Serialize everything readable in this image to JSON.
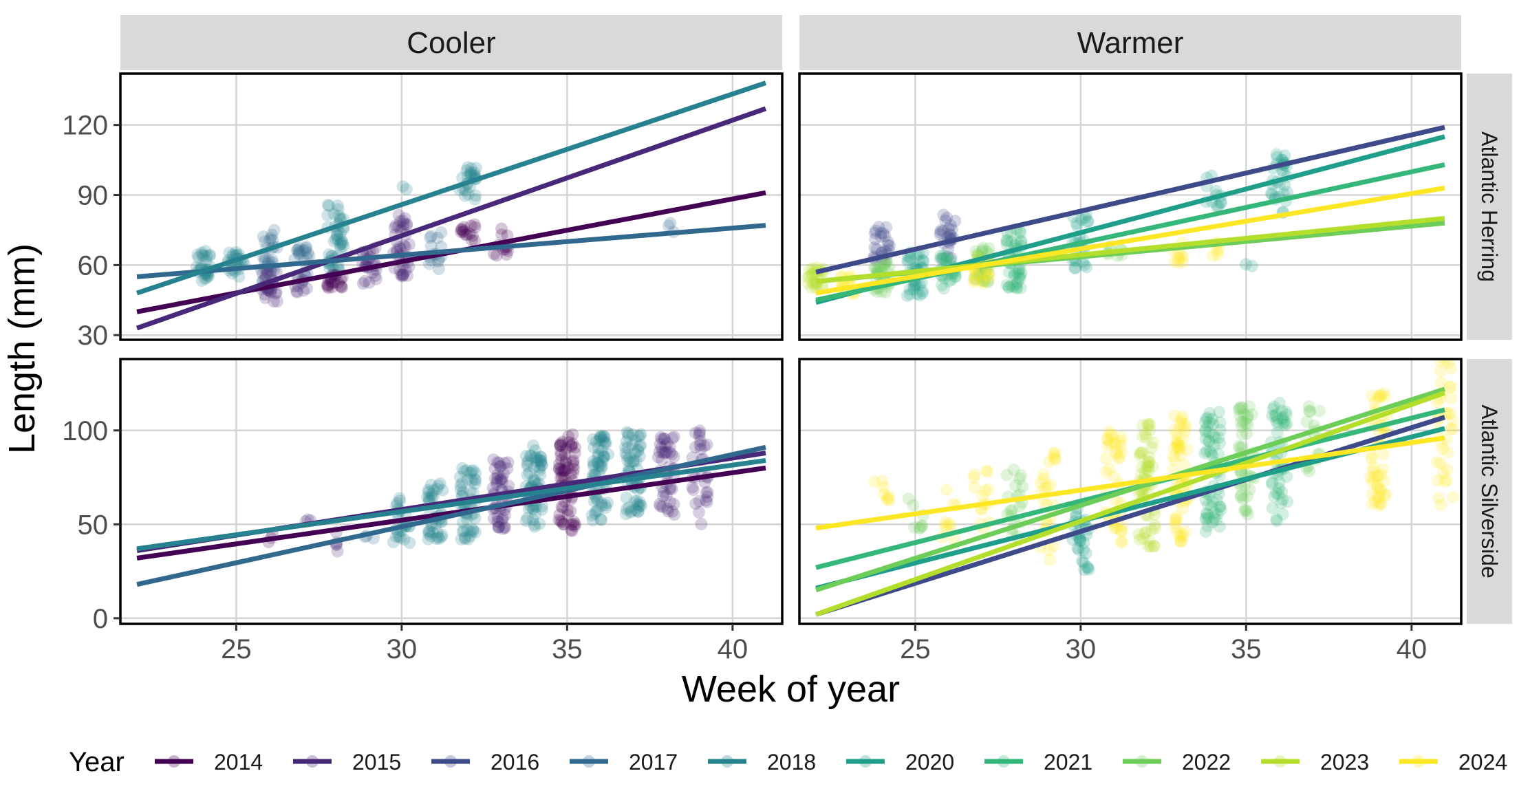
{
  "chart_data": {
    "type": "scatter",
    "xlabel": "Week of year",
    "ylabel": "Length (mm)",
    "xlim": [
      21.5,
      41.5
    ],
    "x_ticks": [
      25,
      30,
      35,
      40
    ],
    "grid": true,
    "legend_position": "bottom",
    "legend": {
      "title": "Year",
      "entries": [
        {
          "name": "2014",
          "color": "#440154"
        },
        {
          "name": "2015",
          "color": "#482878"
        },
        {
          "name": "2016",
          "color": "#3E4A89"
        },
        {
          "name": "2017",
          "color": "#31688E"
        },
        {
          "name": "2018",
          "color": "#26828E"
        },
        {
          "name": "2020",
          "color": "#1F9E89"
        },
        {
          "name": "2021",
          "color": "#35B779"
        },
        {
          "name": "2022",
          "color": "#6DCD59"
        },
        {
          "name": "2023",
          "color": "#B4DE2C"
        },
        {
          "name": "2024",
          "color": "#FDE725"
        }
      ]
    },
    "columns": [
      "Cooler",
      "Warmer"
    ],
    "rows": [
      {
        "name": "Atlantic Herring",
        "ylim": [
          28,
          142
        ],
        "y_ticks": [
          30,
          60,
          90,
          120
        ]
      },
      {
        "name": "Atlantic Silverside",
        "ylim": [
          -3,
          138
        ],
        "y_ticks": [
          0,
          50,
          100
        ]
      }
    ],
    "panels": [
      {
        "column": "Cooler",
        "row": "Atlantic Herring",
        "fit_lines": [
          {
            "year": "2014",
            "x": [
              22,
              41
            ],
            "y": [
              40,
              91
            ]
          },
          {
            "year": "2015",
            "x": [
              22,
              41
            ],
            "y": [
              33,
              127
            ]
          },
          {
            "year": "2017",
            "x": [
              22,
              41
            ],
            "y": [
              55,
              77
            ]
          },
          {
            "year": "2018",
            "x": [
              22,
              41
            ],
            "y": [
              48,
              138
            ]
          }
        ],
        "point_groups": [
          {
            "year": "2018",
            "x": 24,
            "y_min": 53,
            "y_max": 66,
            "n": 30
          },
          {
            "year": "2018",
            "x": 25,
            "y_min": 55,
            "y_max": 66,
            "n": 25
          },
          {
            "year": "2017",
            "x": 26,
            "y_min": 50,
            "y_max": 75,
            "n": 30
          },
          {
            "year": "2015",
            "x": 26,
            "y_min": 44,
            "y_max": 58,
            "n": 25
          },
          {
            "year": "2017",
            "x": 27,
            "y_min": 52,
            "y_max": 68,
            "n": 20
          },
          {
            "year": "2015",
            "x": 27,
            "y_min": 48,
            "y_max": 57,
            "n": 10
          },
          {
            "year": "2018",
            "x": 28,
            "y_min": 56,
            "y_max": 86,
            "n": 45
          },
          {
            "year": "2014",
            "x": 28,
            "y_min": 50,
            "y_max": 56,
            "n": 20
          },
          {
            "year": "2015",
            "x": 29,
            "y_min": 52,
            "y_max": 68,
            "n": 25
          },
          {
            "year": "2015",
            "x": 30,
            "y_min": 55,
            "y_max": 82,
            "n": 40
          },
          {
            "year": "2018",
            "x": 30,
            "y_min": 92,
            "y_max": 96,
            "n": 2
          },
          {
            "year": "2017",
            "x": 31,
            "y_min": 58,
            "y_max": 74,
            "n": 15
          },
          {
            "year": "2018",
            "x": 32,
            "y_min": 88,
            "y_max": 102,
            "n": 25
          },
          {
            "year": "2014",
            "x": 32,
            "y_min": 70,
            "y_max": 78,
            "n": 15
          },
          {
            "year": "2014",
            "x": 33,
            "y_min": 63,
            "y_max": 76,
            "n": 12
          },
          {
            "year": "2017",
            "x": 38,
            "y_min": 72,
            "y_max": 82,
            "n": 3
          }
        ]
      },
      {
        "column": "Warmer",
        "row": "Atlantic Herring",
        "fit_lines": [
          {
            "year": "2016",
            "x": [
              22,
              41
            ],
            "y": [
              57,
              119
            ]
          },
          {
            "year": "2020",
            "x": [
              22,
              41
            ],
            "y": [
              44,
              115
            ]
          },
          {
            "year": "2021",
            "x": [
              22,
              41
            ],
            "y": [
              45,
              103
            ]
          },
          {
            "year": "2022",
            "x": [
              22,
              41
            ],
            "y": [
              53,
              78
            ]
          },
          {
            "year": "2023",
            "x": [
              22,
              41
            ],
            "y": [
              53,
              80
            ]
          },
          {
            "year": "2024",
            "x": [
              22,
              41
            ],
            "y": [
              48,
              93
            ]
          }
        ],
        "point_groups": [
          {
            "year": "2023",
            "x": 22,
            "y_min": 50,
            "y_max": 60,
            "n": 25
          },
          {
            "year": "2024",
            "x": 23,
            "y_min": 47,
            "y_max": 56,
            "n": 15
          },
          {
            "year": "2016",
            "x": 24,
            "y_min": 62,
            "y_max": 78,
            "n": 25
          },
          {
            "year": "2022",
            "x": 24,
            "y_min": 48,
            "y_max": 62,
            "n": 30
          },
          {
            "year": "2020",
            "x": 25,
            "y_min": 46,
            "y_max": 66,
            "n": 35
          },
          {
            "year": "2016",
            "x": 26,
            "y_min": 62,
            "y_max": 82,
            "n": 25
          },
          {
            "year": "2021",
            "x": 26,
            "y_min": 50,
            "y_max": 65,
            "n": 30
          },
          {
            "year": "2022",
            "x": 27,
            "y_min": 52,
            "y_max": 68,
            "n": 35
          },
          {
            "year": "2024",
            "x": 27,
            "y_min": 52,
            "y_max": 64,
            "n": 20
          },
          {
            "year": "2021",
            "x": 28,
            "y_min": 50,
            "y_max": 76,
            "n": 45
          },
          {
            "year": "2020",
            "x": 30,
            "y_min": 58,
            "y_max": 82,
            "n": 25
          },
          {
            "year": "2022",
            "x": 31,
            "y_min": 62,
            "y_max": 68,
            "n": 8
          },
          {
            "year": "2024",
            "x": 33,
            "y_min": 60,
            "y_max": 70,
            "n": 10
          },
          {
            "year": "2020",
            "x": 34,
            "y_min": 84,
            "y_max": 100,
            "n": 12
          },
          {
            "year": "2024",
            "x": 34,
            "y_min": 64,
            "y_max": 72,
            "n": 6
          },
          {
            "year": "2020",
            "x": 35,
            "y_min": 58,
            "y_max": 62,
            "n": 2
          },
          {
            "year": "2020",
            "x": 36,
            "y_min": 82,
            "y_max": 110,
            "n": 30
          }
        ]
      },
      {
        "column": "Cooler",
        "row": "Atlantic Silverside",
        "fit_lines": [
          {
            "year": "2014",
            "x": [
              22,
              41
            ],
            "y": [
              32,
              80
            ]
          },
          {
            "year": "2015",
            "x": [
              22,
              41
            ],
            "y": [
              36,
              88
            ]
          },
          {
            "year": "2017",
            "x": [
              22,
              41
            ],
            "y": [
              18,
              91
            ]
          },
          {
            "year": "2018",
            "x": [
              22,
              41
            ],
            "y": [
              37,
              84
            ]
          }
        ],
        "point_groups": [
          {
            "year": "2014",
            "x": 26,
            "y_min": 40,
            "y_max": 48,
            "n": 3
          },
          {
            "year": "2015",
            "x": 27,
            "y_min": 48,
            "y_max": 53,
            "n": 3
          },
          {
            "year": "2015",
            "x": 28,
            "y_min": 29,
            "y_max": 54,
            "n": 5
          },
          {
            "year": "2017",
            "x": 29,
            "y_min": 33,
            "y_max": 45,
            "n": 3
          },
          {
            "year": "2018",
            "x": 30,
            "y_min": 40,
            "y_max": 66,
            "n": 25
          },
          {
            "year": "2018",
            "x": 31,
            "y_min": 42,
            "y_max": 72,
            "n": 40
          },
          {
            "year": "2018",
            "x": 32,
            "y_min": 42,
            "y_max": 80,
            "n": 50
          },
          {
            "year": "2015",
            "x": 33,
            "y_min": 47,
            "y_max": 85,
            "n": 50
          },
          {
            "year": "2018",
            "x": 34,
            "y_min": 48,
            "y_max": 92,
            "n": 60
          },
          {
            "year": "2014",
            "x": 35,
            "y_min": 45,
            "y_max": 100,
            "n": 70
          },
          {
            "year": "2018",
            "x": 36,
            "y_min": 52,
            "y_max": 97,
            "n": 60
          },
          {
            "year": "2018",
            "x": 37,
            "y_min": 55,
            "y_max": 100,
            "n": 60
          },
          {
            "year": "2015",
            "x": 38,
            "y_min": 55,
            "y_max": 97,
            "n": 45
          },
          {
            "year": "2015",
            "x": 39,
            "y_min": 50,
            "y_max": 100,
            "n": 30
          }
        ]
      },
      {
        "column": "Warmer",
        "row": "Atlantic Silverside",
        "fit_lines": [
          {
            "year": "2016",
            "x": [
              22,
              41
            ],
            "y": [
              2,
              107
            ]
          },
          {
            "year": "2020",
            "x": [
              22,
              41
            ],
            "y": [
              16,
              101
            ]
          },
          {
            "year": "2021",
            "x": [
              22,
              41
            ],
            "y": [
              27,
              111
            ]
          },
          {
            "year": "2022",
            "x": [
              22,
              41
            ],
            "y": [
              15,
              122
            ]
          },
          {
            "year": "2023",
            "x": [
              22,
              41
            ],
            "y": [
              2,
              120
            ]
          },
          {
            "year": "2024",
            "x": [
              22,
              41
            ],
            "y": [
              48,
              96
            ]
          }
        ],
        "point_groups": [
          {
            "year": "2024",
            "x": 24,
            "y_min": 58,
            "y_max": 75,
            "n": 8
          },
          {
            "year": "2022",
            "x": 25,
            "y_min": 45,
            "y_max": 70,
            "n": 8
          },
          {
            "year": "2024",
            "x": 26,
            "y_min": 40,
            "y_max": 76,
            "n": 10
          },
          {
            "year": "2024",
            "x": 27,
            "y_min": 44,
            "y_max": 82,
            "n": 15
          },
          {
            "year": "2022",
            "x": 28,
            "y_min": 40,
            "y_max": 80,
            "n": 20
          },
          {
            "year": "2024",
            "x": 29,
            "y_min": 30,
            "y_max": 90,
            "n": 25
          },
          {
            "year": "2020",
            "x": 30,
            "y_min": 24,
            "y_max": 60,
            "n": 30
          },
          {
            "year": "2024",
            "x": 31,
            "y_min": 40,
            "y_max": 100,
            "n": 40
          },
          {
            "year": "2023",
            "x": 32,
            "y_min": 38,
            "y_max": 105,
            "n": 60
          },
          {
            "year": "2024",
            "x": 33,
            "y_min": 40,
            "y_max": 108,
            "n": 60
          },
          {
            "year": "2021",
            "x": 34,
            "y_min": 45,
            "y_max": 110,
            "n": 60
          },
          {
            "year": "2022",
            "x": 35,
            "y_min": 55,
            "y_max": 115,
            "n": 45
          },
          {
            "year": "2021",
            "x": 36,
            "y_min": 50,
            "y_max": 115,
            "n": 50
          },
          {
            "year": "2022",
            "x": 37,
            "y_min": 75,
            "y_max": 116,
            "n": 15
          },
          {
            "year": "2024",
            "x": 39,
            "y_min": 58,
            "y_max": 120,
            "n": 50
          },
          {
            "year": "2024",
            "x": 41,
            "y_min": 60,
            "y_max": 138,
            "n": 35
          }
        ]
      }
    ]
  }
}
